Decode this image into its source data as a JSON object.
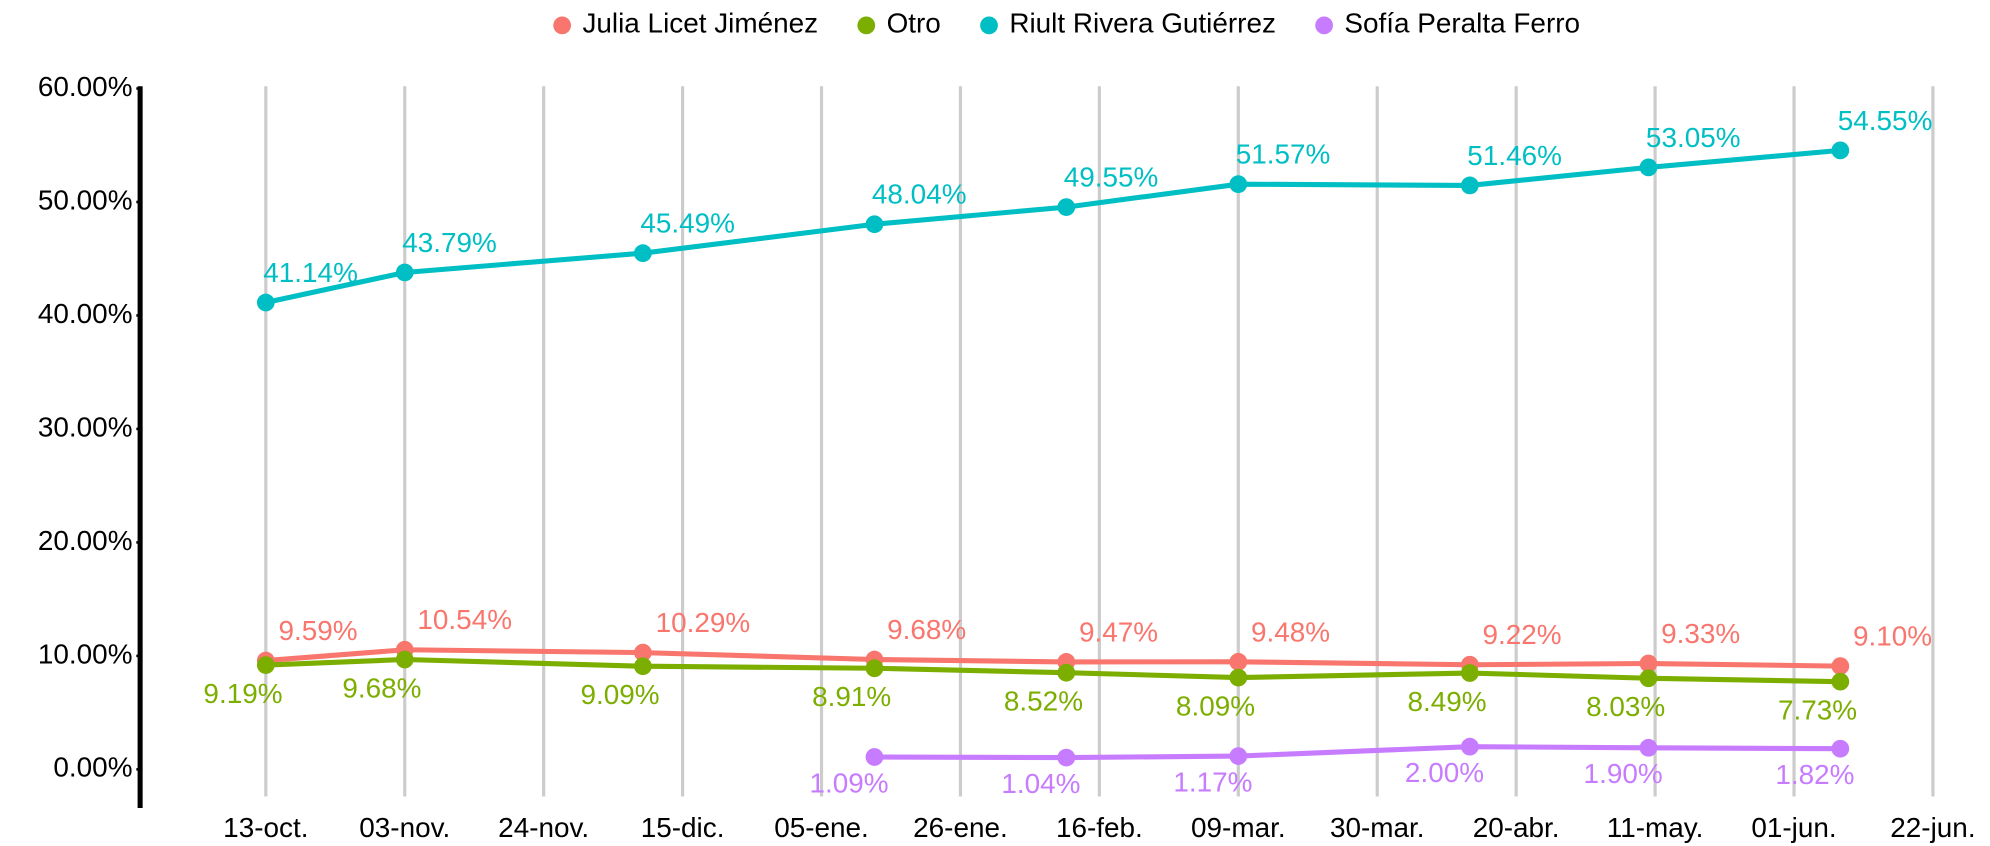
{
  "chart_data": {
    "type": "line",
    "x": [
      "13-oct.",
      "03-nov.",
      "09-dic.",
      "13-ene.",
      "11-feb.",
      "09-mar.",
      "13-abr.",
      "10-may.",
      "08-jun."
    ],
    "series": [
      {
        "name": "Julia Licet Jiménez",
        "color": "#f8766d",
        "values": [
          9.59,
          10.54,
          10.29,
          9.68,
          9.47,
          9.48,
          9.22,
          9.33,
          9.1
        ],
        "value_labels": [
          "9.59%",
          "10.54%",
          "10.29%",
          "9.68%",
          "9.47%",
          "9.48%",
          "9.22%",
          "9.33%",
          "9.10%"
        ]
      },
      {
        "name": "Otro",
        "color": "#7cae00",
        "values": [
          9.19,
          9.68,
          9.09,
          8.91,
          8.52,
          8.09,
          8.49,
          8.03,
          7.73
        ],
        "value_labels": [
          "9.19%",
          "9.68%",
          "9.09%",
          "8.91%",
          "8.52%",
          "8.09%",
          "8.49%",
          "8.03%",
          "7.73%"
        ]
      },
      {
        "name": "Riult Rivera Gutiérrez",
        "color": "#00bfc4",
        "values": [
          41.14,
          43.79,
          45.49,
          48.04,
          49.55,
          51.57,
          51.46,
          53.05,
          54.55
        ],
        "value_labels": [
          "41.14%",
          "43.79%",
          "45.49%",
          "48.04%",
          "49.55%",
          "51.57%",
          "51.46%",
          "53.05%",
          "54.55%"
        ]
      },
      {
        "name": "Sofía Peralta Ferro",
        "color": "#c77cff",
        "values": [
          null,
          null,
          null,
          1.09,
          1.04,
          1.17,
          2.0,
          1.9,
          1.82
        ],
        "value_labels": [
          null,
          null,
          null,
          "1.09%",
          "1.04%",
          "1.17%",
          "2.00%",
          "1.90%",
          "1.82%"
        ]
      }
    ],
    "xlim": [
      "24-sep.",
      "29-jun."
    ],
    "xticks": [
      "13-oct.",
      "03-nov.",
      "24-nov.",
      "15-dic.",
      "05-ene.",
      "26-ene.",
      "16-feb.",
      "09-mar.",
      "30-mar.",
      "20-abr.",
      "11-may.",
      "01-jun.",
      "22-jun."
    ],
    "ylim": [
      -3.4,
      60.2
    ],
    "yticks": [
      {
        "value": 0,
        "label": "0.00%"
      },
      {
        "value": 10,
        "label": "10.00%"
      },
      {
        "value": 20,
        "label": "20.00%"
      },
      {
        "value": 30,
        "label": "30.00%"
      },
      {
        "value": 40,
        "label": "40.00%"
      },
      {
        "value": 50,
        "label": "50.00%"
      },
      {
        "value": 60,
        "label": "60.00%"
      }
    ],
    "grid": "x",
    "legend": "top"
  }
}
